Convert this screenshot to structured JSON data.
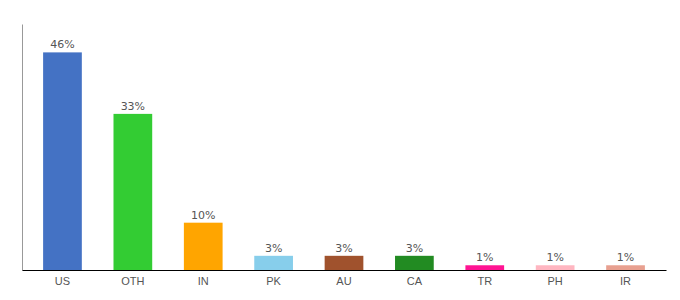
{
  "chart_data": {
    "type": "bar",
    "categories": [
      "US",
      "OTH",
      "IN",
      "PK",
      "AU",
      "CA",
      "TR",
      "PH",
      "IR"
    ],
    "values": [
      46,
      33,
      10,
      3,
      3,
      3,
      1,
      1,
      1
    ],
    "value_labels": [
      "46%",
      "33%",
      "10%",
      "3%",
      "3%",
      "3%",
      "1%",
      "1%",
      "1%"
    ],
    "colors": [
      "#4472c4",
      "#33cc33",
      "#ffa500",
      "#87ceeb",
      "#a0522d",
      "#228b22",
      "#ff1493",
      "#ffb6c1",
      "#e8a090"
    ],
    "ylim": [
      0,
      52
    ],
    "data_labels": true,
    "tick_labels": "x",
    "grid": false
  }
}
